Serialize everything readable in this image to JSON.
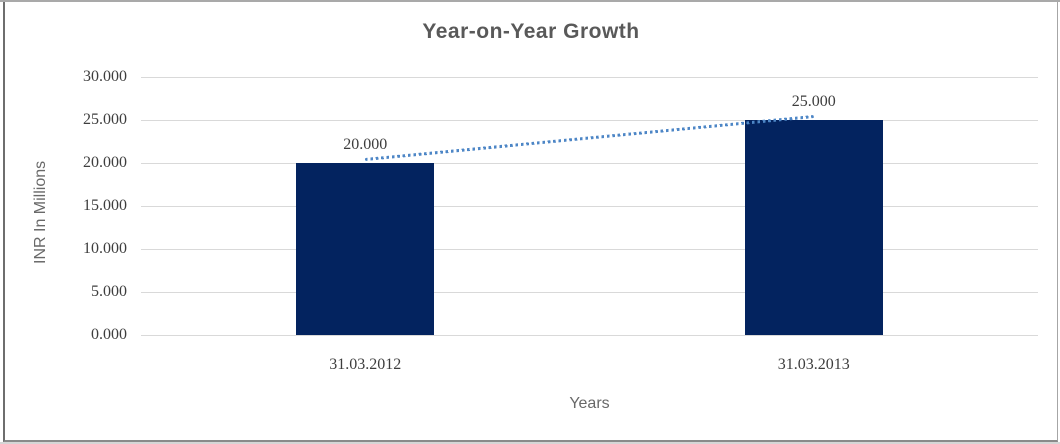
{
  "chart_data": {
    "type": "bar",
    "title": "Year-on-Year Growth",
    "xlabel": "Years",
    "ylabel": "INR In Millions",
    "categories": [
      "31.03.2012",
      "31.03.2013"
    ],
    "values": [
      20,
      25
    ],
    "data_labels": [
      "20.000",
      "25.000"
    ],
    "y_tick_values": [
      0,
      5,
      10,
      15,
      20,
      25,
      30
    ],
    "y_tick_labels": [
      "0.000",
      "5.000",
      "10.000",
      "15.000",
      "20.000",
      "25.000",
      "30.000"
    ],
    "ylim": [
      0,
      30
    ],
    "grid": true,
    "legend": false,
    "trendline": {
      "type": "linear",
      "style": "dotted",
      "color": "#4d86c6"
    },
    "colors": {
      "bar": "#03235f",
      "gridline": "#d9d9d9",
      "title_text": "#595959",
      "axis_title_text": "#696969",
      "tick_text": "#3d3d3d"
    }
  }
}
